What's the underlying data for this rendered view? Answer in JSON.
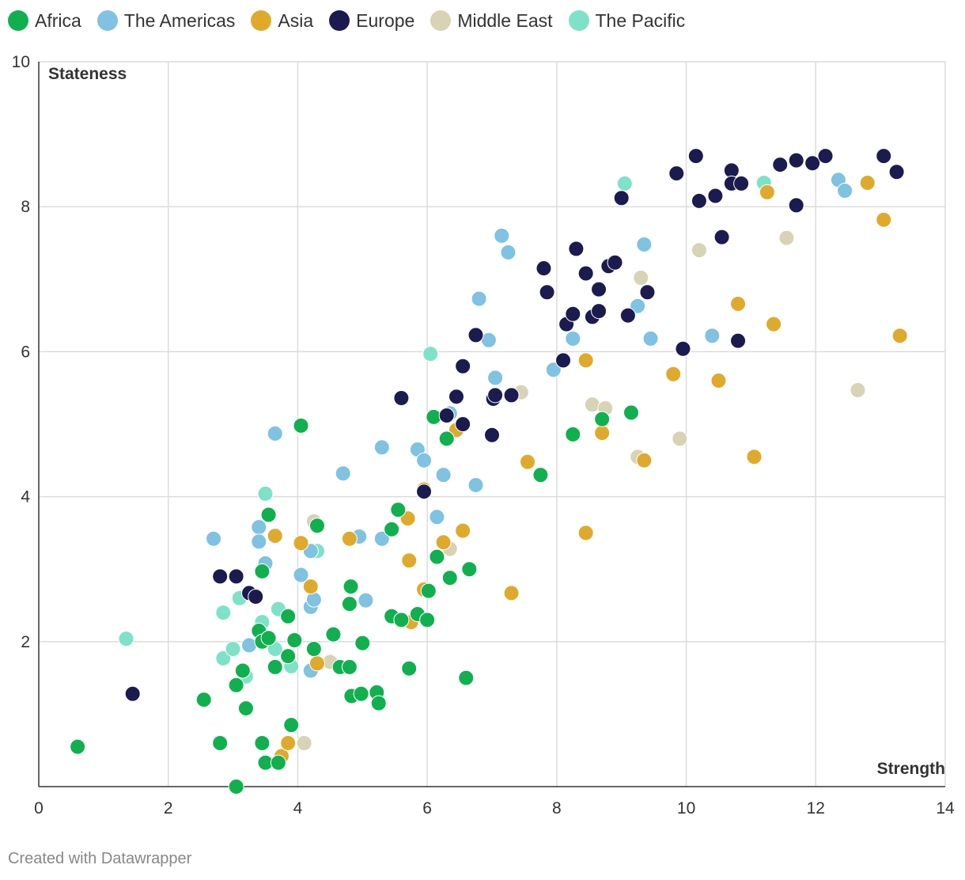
{
  "chart_data": {
    "type": "scatter",
    "title": "",
    "xlabel": "Strength",
    "ylabel": "Stateness",
    "xlim": [
      0,
      14
    ],
    "ylim": [
      0,
      10
    ],
    "xticks": [
      0,
      2,
      4,
      6,
      8,
      10,
      12,
      14
    ],
    "yticks": [
      2,
      4,
      6,
      8,
      10
    ],
    "grid": true,
    "legend_position": "top-left",
    "series": [
      {
        "name": "Africa",
        "color": "#10b04f",
        "points": [
          [
            0.6,
            0.55
          ],
          [
            2.55,
            1.2
          ],
          [
            2.8,
            0.6
          ],
          [
            3.05,
            0.0
          ],
          [
            3.05,
            1.4
          ],
          [
            3.15,
            1.6
          ],
          [
            3.2,
            1.08
          ],
          [
            3.45,
            0.6
          ],
          [
            3.5,
            0.33
          ],
          [
            3.7,
            0.33
          ],
          [
            3.4,
            2.15
          ],
          [
            3.45,
            2.0
          ],
          [
            3.55,
            2.05
          ],
          [
            3.65,
            1.65
          ],
          [
            3.85,
            1.8
          ],
          [
            3.95,
            2.02
          ],
          [
            3.85,
            2.35
          ],
          [
            3.45,
            2.97
          ],
          [
            3.55,
            3.75
          ],
          [
            4.05,
            4.98
          ],
          [
            4.3,
            3.6
          ],
          [
            4.25,
            1.9
          ],
          [
            3.9,
            0.85
          ],
          [
            4.55,
            2.1
          ],
          [
            4.65,
            1.65
          ],
          [
            4.8,
            1.65
          ],
          [
            4.8,
            2.52
          ],
          [
            4.82,
            2.76
          ],
          [
            4.83,
            1.25
          ],
          [
            4.98,
            1.28
          ],
          [
            5.0,
            1.98
          ],
          [
            5.22,
            1.3
          ],
          [
            5.25,
            1.15
          ],
          [
            5.45,
            2.35
          ],
          [
            5.6,
            2.3
          ],
          [
            5.72,
            1.63
          ],
          [
            5.45,
            3.55
          ],
          [
            5.55,
            3.82
          ],
          [
            5.85,
            2.38
          ],
          [
            6.0,
            2.3
          ],
          [
            6.02,
            2.7
          ],
          [
            6.15,
            3.17
          ],
          [
            6.1,
            5.1
          ],
          [
            6.35,
            2.88
          ],
          [
            6.3,
            4.8
          ],
          [
            6.6,
            1.5
          ],
          [
            6.65,
            3.0
          ],
          [
            7.75,
            4.3
          ],
          [
            8.25,
            4.86
          ],
          [
            8.7,
            5.07
          ],
          [
            9.15,
            5.16
          ]
        ]
      },
      {
        "name": "The Americas",
        "color": "#7fc2e2",
        "points": [
          [
            2.7,
            3.42
          ],
          [
            3.25,
            1.95
          ],
          [
            3.4,
            3.58
          ],
          [
            3.4,
            3.38
          ],
          [
            3.5,
            3.08
          ],
          [
            3.65,
            4.87
          ],
          [
            4.2,
            2.48
          ],
          [
            4.25,
            2.58
          ],
          [
            4.2,
            1.6
          ],
          [
            4.2,
            3.25
          ],
          [
            4.05,
            2.92
          ],
          [
            4.7,
            4.32
          ],
          [
            4.95,
            3.45
          ],
          [
            5.05,
            2.57
          ],
          [
            5.3,
            4.68
          ],
          [
            5.3,
            3.42
          ],
          [
            5.85,
            4.65
          ],
          [
            5.95,
            4.5
          ],
          [
            6.15,
            3.72
          ],
          [
            6.25,
            4.3
          ],
          [
            6.35,
            5.15
          ],
          [
            6.75,
            4.16
          ],
          [
            6.8,
            6.73
          ],
          [
            6.95,
            6.16
          ],
          [
            7.05,
            5.64
          ],
          [
            7.15,
            7.6
          ],
          [
            7.25,
            7.37
          ],
          [
            7.95,
            5.75
          ],
          [
            8.25,
            6.18
          ],
          [
            9.25,
            6.63
          ],
          [
            9.35,
            7.48
          ],
          [
            9.45,
            6.18
          ],
          [
            10.4,
            6.22
          ],
          [
            12.35,
            8.37
          ],
          [
            12.45,
            8.22
          ]
        ]
      },
      {
        "name": "Asia",
        "color": "#dfaa2c",
        "points": [
          [
            3.75,
            0.42
          ],
          [
            3.85,
            0.6
          ],
          [
            3.65,
            3.46
          ],
          [
            4.05,
            3.36
          ],
          [
            4.2,
            2.76
          ],
          [
            4.3,
            1.7
          ],
          [
            4.8,
            3.42
          ],
          [
            5.72,
            3.12
          ],
          [
            5.7,
            3.7
          ],
          [
            5.75,
            2.27
          ],
          [
            5.95,
            2.72
          ],
          [
            5.95,
            4.1
          ],
          [
            6.25,
            3.37
          ],
          [
            6.45,
            4.92
          ],
          [
            6.55,
            3.53
          ],
          [
            7.3,
            2.67
          ],
          [
            7.55,
            4.48
          ],
          [
            8.45,
            5.88
          ],
          [
            8.45,
            3.5
          ],
          [
            8.7,
            4.88
          ],
          [
            9.35,
            4.5
          ],
          [
            9.8,
            5.69
          ],
          [
            10.5,
            5.6
          ],
          [
            10.8,
            6.66
          ],
          [
            11.05,
            4.55
          ],
          [
            11.25,
            8.2
          ],
          [
            11.35,
            6.38
          ],
          [
            12.8,
            8.33
          ],
          [
            13.05,
            7.82
          ],
          [
            13.3,
            6.22
          ]
        ]
      },
      {
        "name": "Europe",
        "color": "#1b1b50",
        "points": [
          [
            1.45,
            1.28
          ],
          [
            2.8,
            2.9
          ],
          [
            3.05,
            2.9
          ],
          [
            3.25,
            2.67
          ],
          [
            3.35,
            2.62
          ],
          [
            5.6,
            5.36
          ],
          [
            5.95,
            4.07
          ],
          [
            6.3,
            5.12
          ],
          [
            6.45,
            5.38
          ],
          [
            6.55,
            5.0
          ],
          [
            6.55,
            5.8
          ],
          [
            6.75,
            6.23
          ],
          [
            7.0,
            4.85
          ],
          [
            7.02,
            5.35
          ],
          [
            7.05,
            5.4
          ],
          [
            7.3,
            5.4
          ],
          [
            7.8,
            7.15
          ],
          [
            7.85,
            6.82
          ],
          [
            8.1,
            5.88
          ],
          [
            8.15,
            6.38
          ],
          [
            8.25,
            6.52
          ],
          [
            8.3,
            7.42
          ],
          [
            8.45,
            7.08
          ],
          [
            8.55,
            6.48
          ],
          [
            8.65,
            6.86
          ],
          [
            8.65,
            6.56
          ],
          [
            8.8,
            7.18
          ],
          [
            8.9,
            7.23
          ],
          [
            9.0,
            8.12
          ],
          [
            9.1,
            6.5
          ],
          [
            9.4,
            6.82
          ],
          [
            9.85,
            8.46
          ],
          [
            9.95,
            6.04
          ],
          [
            10.15,
            8.7
          ],
          [
            10.2,
            8.08
          ],
          [
            10.45,
            8.15
          ],
          [
            10.55,
            7.58
          ],
          [
            10.7,
            8.5
          ],
          [
            10.7,
            8.32
          ],
          [
            10.8,
            6.15
          ],
          [
            10.85,
            8.32
          ],
          [
            11.45,
            8.58
          ],
          [
            11.7,
            8.02
          ],
          [
            11.7,
            8.64
          ],
          [
            11.95,
            8.6
          ],
          [
            12.15,
            8.7
          ],
          [
            13.05,
            8.7
          ],
          [
            13.25,
            8.48
          ]
        ]
      },
      {
        "name": "Middle East",
        "color": "#d8d3b5",
        "points": [
          [
            4.1,
            0.6
          ],
          [
            4.25,
            3.66
          ],
          [
            4.5,
            1.72
          ],
          [
            6.35,
            3.28
          ],
          [
            7.45,
            5.44
          ],
          [
            8.55,
            5.27
          ],
          [
            8.75,
            5.22
          ],
          [
            9.25,
            4.55
          ],
          [
            9.3,
            7.02
          ],
          [
            9.9,
            4.8
          ],
          [
            10.2,
            7.4
          ],
          [
            11.55,
            7.57
          ],
          [
            12.65,
            5.47
          ]
        ]
      },
      {
        "name": "The Pacific",
        "color": "#7ee2c8",
        "points": [
          [
            1.35,
            2.04
          ],
          [
            2.85,
            2.4
          ],
          [
            2.85,
            1.77
          ],
          [
            3.0,
            1.9
          ],
          [
            3.1,
            2.6
          ],
          [
            3.2,
            1.52
          ],
          [
            3.45,
            2.27
          ],
          [
            3.5,
            4.04
          ],
          [
            3.65,
            1.9
          ],
          [
            3.7,
            2.45
          ],
          [
            3.9,
            1.66
          ],
          [
            4.3,
            3.25
          ],
          [
            6.05,
            5.97
          ],
          [
            9.05,
            8.32
          ],
          [
            11.2,
            8.33
          ]
        ]
      }
    ]
  },
  "footer": {
    "credit": "Created with Datawrapper"
  }
}
